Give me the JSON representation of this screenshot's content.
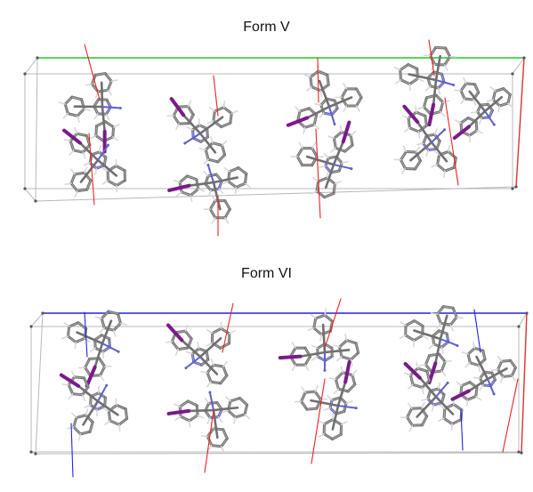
{
  "figure": {
    "panels": [
      {
        "label": "Form V",
        "cell_axis_color": "#22cc22",
        "contact_colors": [
          "#ee2222",
          "#2222ee"
        ]
      },
      {
        "label": "Form VI",
        "cell_axis_color": "#2222dd",
        "contact_colors": [
          "#ee2222",
          "#2222ee"
        ]
      }
    ],
    "atom_colors": {
      "carbon": "#707070",
      "hydrogen": "#d8d8d8",
      "nitrogen": "#6060c8",
      "iodine": "#7a1a8a"
    },
    "icons": [
      "crystal-packing-diagram",
      "unit-cell-box",
      "molecule-icon"
    ]
  }
}
